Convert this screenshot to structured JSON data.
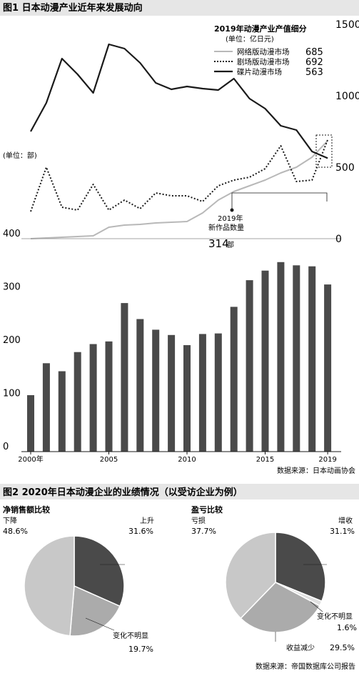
{
  "chart_data": [
    {
      "type": "bar+line",
      "title": "图1  日本动漫产业近年来发展动向",
      "bar_unit_label": "(单位：部)",
      "years": [
        2000,
        2001,
        2002,
        2003,
        2004,
        2005,
        2006,
        2007,
        2008,
        2009,
        2010,
        2011,
        2012,
        2013,
        2014,
        2015,
        2016,
        2017,
        2018,
        2019
      ],
      "x_tick_labels": [
        {
          "year": 2000,
          "label": "2000年"
        },
        {
          "year": 2005,
          "label": "2005"
        },
        {
          "year": 2010,
          "label": "2010"
        },
        {
          "year": 2015,
          "label": "2015"
        },
        {
          "year": 2019,
          "label": "2019"
        }
      ],
      "bar_series": {
        "name": "新作品数量",
        "values": [
          106,
          166,
          151,
          187,
          202,
          207,
          279,
          249,
          229,
          219,
          200,
          221,
          222,
          272,
          322,
          340,
          356,
          350,
          348,
          314
        ]
      },
      "left_axis": {
        "range": [
          0,
          400
        ],
        "ticks": [
          0,
          100,
          200,
          300,
          400
        ]
      },
      "right_axis": {
        "range": [
          0,
          1600
        ],
        "ticks": [
          0,
          500,
          1000,
          1500
        ]
      },
      "legend_title": "2019年动漫产业产值细分",
      "legend_unit": "(单位：亿日元)",
      "line_series": [
        {
          "name": "网络版动漫市场",
          "value_2019": "685",
          "style": "solid-gray",
          "color": "#b8b8b8",
          "values": [
            0,
            5,
            10,
            15,
            20,
            80,
            95,
            100,
            110,
            115,
            120,
            180,
            270,
            330,
            370,
            410,
            460,
            500,
            570,
            685
          ]
        },
        {
          "name": "剧场版动漫市场",
          "value_2019": "692",
          "style": "dotted",
          "color": "#1a1a1a",
          "values": [
            190,
            500,
            220,
            200,
            380,
            200,
            270,
            210,
            320,
            300,
            300,
            260,
            370,
            410,
            430,
            490,
            650,
            400,
            410,
            692
          ]
        },
        {
          "name": "碟片动漫市场",
          "value_2019": "563",
          "style": "solid-dark",
          "color": "#1a1a1a",
          "values": [
            750,
            950,
            1260,
            1150,
            1020,
            1360,
            1330,
            1230,
            1090,
            1045,
            1065,
            1050,
            1040,
            1120,
            980,
            910,
            790,
            760,
            610,
            563
          ]
        }
      ],
      "annotation": {
        "line1": "2019年",
        "line2": "新作品数量",
        "value": "314",
        "unit": "部"
      },
      "source": "数据来源：日本动画协会"
    },
    {
      "type": "pie",
      "figure_title": "图2  2020年日本动漫企业的业绩情况（以受访企业为例）",
      "title": "净销售额比较",
      "slices": [
        {
          "label": "上升",
          "value": 31.6,
          "display": "31.6%",
          "color": "#4a4a4a"
        },
        {
          "label": "变化不明显",
          "value": 19.7,
          "display": "19.7%",
          "color": "#ababab"
        },
        {
          "label": "下降",
          "value": 48.6,
          "display": "48.6%",
          "color": "#c8c8c8"
        }
      ]
    },
    {
      "type": "pie",
      "title": "盈亏比较",
      "slices": [
        {
          "label": "增收",
          "value": 31.1,
          "display": "31.1%",
          "color": "#4a4a4a"
        },
        {
          "label": "变化不明显",
          "value": 1.6,
          "display": "1.6%",
          "color": "#e0e0e0"
        },
        {
          "label": "收益减少",
          "value": 29.5,
          "display": "29.5%",
          "color": "#ababab"
        },
        {
          "label": "亏损",
          "value": 37.7,
          "display": "37.7%",
          "color": "#c8c8c8"
        }
      ],
      "source": "数据来源：帝国数据库公司报告"
    }
  ]
}
